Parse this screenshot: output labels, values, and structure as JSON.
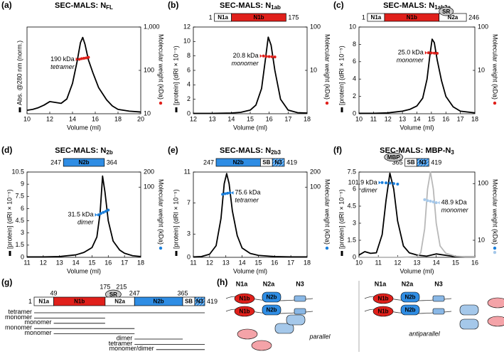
{
  "chart_data": [
    {
      "type": "line",
      "panel": "(a)",
      "title": "SEC-MALS: N",
      "title_sub": "FL",
      "xlabel": "Volume (ml)",
      "ylabel": "Abs. @280 nm (norm.)",
      "y2label": "Molecular weight (kDa)",
      "xlim": [
        10,
        20
      ],
      "xticks": [
        10,
        12,
        14,
        16,
        18,
        20
      ],
      "ylim": [
        0,
        1
      ],
      "y2lim": [
        10,
        1000
      ],
      "y2ticks": [
        10,
        100,
        {
          "value": 1000,
          "label": "1,000"
        }
      ],
      "y2log": true,
      "series": [
        {
          "color": "#000000",
          "x": [
            10,
            10.5,
            11,
            11.5,
            12,
            12.5,
            13,
            13.5,
            14,
            14.4,
            14.7,
            14.9,
            15.1,
            15.4,
            15.8,
            16.3,
            17,
            17.5,
            18,
            19,
            20
          ],
          "values": [
            0.04,
            0.05,
            0.07,
            0.1,
            0.14,
            0.13,
            0.12,
            0.17,
            0.35,
            0.6,
            0.82,
            0.88,
            0.8,
            0.62,
            0.47,
            0.3,
            0.16,
            0.09,
            0.05,
            0.03,
            0.02
          ]
        },
        {
          "color": "#e0201b",
          "axis": "y2",
          "x": [
            14.6,
            14.8,
            15,
            15.2,
            15.4
          ],
          "values": [
            180,
            186,
            190,
            194,
            200
          ],
          "label": "190 kDa",
          "note": "tetramer"
        }
      ]
    },
    {
      "type": "line",
      "panel": "(b)",
      "title": "SEC-MALS: N",
      "title_sub": "1ab",
      "construct": {
        "segments": [
          {
            "label": "N1a",
            "color": "#ffffff"
          },
          {
            "label": "N1b",
            "color": "#e0201b"
          }
        ],
        "start": 1,
        "end": 175
      },
      "xlabel": "Volume (ml)",
      "ylabel": "[protein] (dRI × 10⁻⁵)",
      "y2label": "Molecular weight (kDa)",
      "xlim": [
        12,
        18
      ],
      "xticks": [
        12,
        13,
        14,
        15,
        16,
        17,
        18
      ],
      "ylim": [
        0,
        12
      ],
      "yticks": [
        0,
        2,
        4,
        6,
        8,
        10,
        12
      ],
      "y2lim": [
        1,
        100
      ],
      "y2ticks": [
        10,
        100
      ],
      "y2log": true,
      "series": [
        {
          "color": "#000000",
          "x": [
            12,
            13,
            14,
            14.5,
            15,
            15.3,
            15.6,
            15.8,
            15.95,
            16.1,
            16.3,
            16.6,
            17,
            17.5,
            18
          ],
          "values": [
            0.05,
            0.05,
            0.1,
            0.2,
            0.5,
            1.2,
            3.5,
            7.5,
            10.6,
            9.5,
            6,
            2,
            0.5,
            0.15,
            0.1
          ]
        },
        {
          "color": "#e0201b",
          "axis": "y2",
          "x": [
            15.7,
            15.85,
            16,
            16.15,
            16.3
          ],
          "values": [
            21.5,
            21,
            20.8,
            20.6,
            20.4
          ],
          "label": "20.8 kDa",
          "note": "monomer"
        }
      ]
    },
    {
      "type": "line",
      "panel": "(c)",
      "title": "SEC-MALS: N",
      "title_sub": "1ab2a",
      "construct": {
        "segments": [
          {
            "label": "N1a",
            "color": "#ffffff"
          },
          {
            "label": "N1b",
            "color": "#e0201b"
          },
          {
            "label": "N2a",
            "color": "#ffffff"
          }
        ],
        "tag": "SR",
        "start": 1,
        "end": 246
      },
      "xlabel": "Volume (ml)",
      "ylabel": "[protein] (dRI × 10⁻⁵)",
      "y2label": "Molecular weight (kDa)",
      "xlim": [
        10,
        18
      ],
      "xticks": [
        10,
        11,
        12,
        13,
        14,
        15,
        16,
        17,
        18
      ],
      "ylim": [
        0,
        10
      ],
      "yticks": [
        0,
        2,
        4,
        6,
        8,
        10
      ],
      "y2lim": [
        1,
        100
      ],
      "y2ticks": [
        10,
        100
      ],
      "y2log": true,
      "series": [
        {
          "color": "#000000",
          "x": [
            10,
            11,
            12,
            12.5,
            13,
            13.5,
            14,
            14.4,
            14.7,
            14.9,
            15.05,
            15.2,
            15.4,
            15.7,
            16,
            16.5,
            17,
            18
          ],
          "values": [
            0.05,
            0.05,
            0.1,
            0.2,
            0.3,
            0.5,
            0.9,
            1.8,
            4,
            6.8,
            8.6,
            8.2,
            6.2,
            3.8,
            2,
            0.8,
            0.3,
            0.1
          ]
        },
        {
          "color": "#e0201b",
          "axis": "y2",
          "x": [
            14.8,
            15,
            15.2,
            15.4
          ],
          "values": [
            25.5,
            25.2,
            25,
            24.7
          ],
          "label": "25.0 kDa",
          "note": "monomer"
        }
      ]
    },
    {
      "type": "line",
      "panel": "(d)",
      "title": "SEC-MALS: N",
      "title_sub": "2b",
      "construct": {
        "segments": [
          {
            "label": "N2b",
            "color": "#2f8de4"
          }
        ],
        "start": 247,
        "end": 364
      },
      "xlabel": "Volume (ml)",
      "ylabel": "[protein] (dRI × 10⁻⁵)",
      "y2label": "Molecular weight (kDa)",
      "xlim": [
        11,
        18
      ],
      "xticks": [
        11,
        12,
        13,
        14,
        15,
        16,
        17,
        18
      ],
      "ylim": [
        0,
        10.5
      ],
      "yticks": [
        0,
        1.5,
        3,
        4.5,
        6,
        7.5,
        9,
        10.5
      ],
      "y2lim": [
        4,
        200
      ],
      "y2ticks": [
        100,
        200
      ],
      "y2log": true,
      "series": [
        {
          "color": "#000000",
          "x": [
            11,
            12,
            13,
            14,
            14.5,
            15,
            15.3,
            15.5,
            15.65,
            15.8,
            16,
            16.3,
            16.7,
            17,
            17.5,
            18
          ],
          "values": [
            0.05,
            0.05,
            0.1,
            0.3,
            0.6,
            1.2,
            2.5,
            5.5,
            10,
            8,
            4.5,
            2,
            0.9,
            0.5,
            0.2,
            0.1
          ]
        },
        {
          "color": "#1a7fdc",
          "axis": "y2",
          "x": [
            15.4,
            15.55,
            15.7,
            15.85,
            16
          ],
          "values": [
            28,
            30,
            31.5,
            33,
            35
          ],
          "label": "31.5 kDa",
          "note": "dimer"
        }
      ]
    },
    {
      "type": "line",
      "panel": "(e)",
      "title": "SEC-MALS: N",
      "title_sub": "2b3",
      "construct": {
        "segments": [
          {
            "label": "N2b",
            "color": "#2f8de4"
          },
          {
            "label": "SB",
            "color": "#ffffff"
          },
          {
            "label": "N3",
            "color": "#2f8de4",
            "hatch": true
          }
        ],
        "start": 247,
        "end": 419
      },
      "xlabel": "Volume (ml)",
      "ylabel": "[protein] (dRI × 10⁻⁵)",
      "y2label": "Molecular weight (kDa)",
      "xlim": [
        11,
        18
      ],
      "xticks": [
        11,
        12,
        13,
        14,
        15,
        16,
        17,
        18
      ],
      "ylim": [
        0,
        11
      ],
      "yticks": [
        0,
        3,
        7,
        11
      ],
      "y2lim": [
        4,
        200
      ],
      "y2ticks": [
        100,
        200
      ],
      "y2log": true,
      "series": [
        {
          "color": "#000000",
          "x": [
            11,
            11.5,
            12,
            12.4,
            12.7,
            12.9,
            13.05,
            13.2,
            13.4,
            13.7,
            14,
            14.5,
            15,
            16,
            17,
            18
          ],
          "values": [
            0.05,
            0.1,
            0.4,
            1.5,
            5,
            9.5,
            10.8,
            9.5,
            6,
            2.8,
            1.2,
            0.5,
            0.25,
            0.1,
            0.05,
            0.05
          ]
        },
        {
          "color": "#1a7fdc",
          "axis": "y2",
          "x": [
            12.8,
            12.95,
            13.1,
            13.25
          ],
          "values": [
            72,
            74,
            75.6,
            77
          ],
          "label": "75.6 kDa",
          "note": "tetramer"
        }
      ]
    },
    {
      "type": "line",
      "panel": "(f)",
      "title": "SEC-MALS: MBP-N",
      "title_sub": "3",
      "construct": {
        "segments": [
          {
            "label": "SB",
            "color": "#ffffff"
          },
          {
            "label": "N3",
            "color": "#2f8de4",
            "hatch": true
          }
        ],
        "tag": "MBP",
        "start": 365,
        "end": 419
      },
      "xlabel": "Volume (ml)",
      "ylabel": "[protein] (dRI × 10⁻⁵)",
      "y2label": "Molecular weight (kDa)",
      "xlim": [
        10,
        16
      ],
      "xticks": [
        10,
        11,
        12,
        13,
        14,
        15,
        16
      ],
      "ylim": [
        0,
        7.5
      ],
      "yticks": [
        0,
        1.5,
        3,
        4.5,
        6,
        7.5
      ],
      "y2lim": [
        5,
        160
      ],
      "y2ticks": [
        10,
        100
      ],
      "y2log": true,
      "series": [
        {
          "color": "#000000",
          "x": [
            10,
            10.3,
            10.6,
            10.9,
            11.2,
            11.4,
            11.6,
            11.8,
            12,
            12.3,
            12.6,
            13,
            13.5,
            14,
            15,
            16
          ],
          "values": [
            0.2,
            0.5,
            0.35,
            0.4,
            2,
            5,
            7.4,
            6,
            3.2,
            1,
            0.4,
            0.2,
            0.1,
            0.3,
            0.05,
            0.05
          ]
        },
        {
          "color": "#b8b8b8",
          "x": [
            10,
            12,
            13,
            13.2,
            13.4,
            13.55,
            13.7,
            13.85,
            14,
            14.2,
            14.5,
            15,
            15.5,
            16
          ],
          "values": [
            0,
            0,
            0.05,
            0.4,
            2.5,
            6,
            7.5,
            6,
            3,
            1,
            0.35,
            0.1,
            0.05,
            0.05
          ]
        },
        {
          "color": "#1a7fdc",
          "axis": "y2",
          "x": [
            11.2,
            11.4,
            11.6,
            11.8,
            12
          ],
          "values": [
            104,
            103,
            101.9,
            100,
            98
          ],
          "label": "101.9 kDa",
          "note": "dimer"
        },
        {
          "color": "#a5c8ea",
          "axis": "y2",
          "x": [
            13.4,
            13.55,
            13.7,
            13.85,
            14
          ],
          "values": [
            52,
            50,
            48.9,
            47.5,
            46
          ],
          "label": "48.9 kDa",
          "note": "monomer"
        }
      ]
    }
  ],
  "panel_g": {
    "panel": "(g)",
    "segments": [
      {
        "label": "N1a",
        "color": "#ffffff"
      },
      {
        "label": "N1b",
        "color": "#e0201b"
      },
      {
        "label": "N2a",
        "color": "#ffffff"
      },
      {
        "label": "N2b",
        "color": "#2f8de4"
      },
      {
        "label": "SB",
        "color": "#ffffff"
      },
      {
        "label": "N3",
        "color": "#2f8de4",
        "hatch": true
      }
    ],
    "tag": "SR",
    "residues": [
      1,
      49,
      175,
      215,
      247,
      365,
      419
    ],
    "fragments": [
      "tetramer",
      "monomer",
      "monomer",
      "monomer",
      "monomer",
      "dimer",
      "tetramer",
      "monomer/dimer"
    ]
  },
  "panel_h": {
    "panel": "(h)",
    "left": {
      "headers": [
        "N1a",
        "N2a",
        "N3"
      ],
      "n1b": "N1b",
      "n2b": "N2b",
      "caption": "parallel"
    },
    "right": {
      "headers": [
        "N1a",
        "N2a",
        "N3"
      ],
      "n1b": "N1b",
      "n2b": "N2b",
      "caption": "antiparallel"
    }
  }
}
